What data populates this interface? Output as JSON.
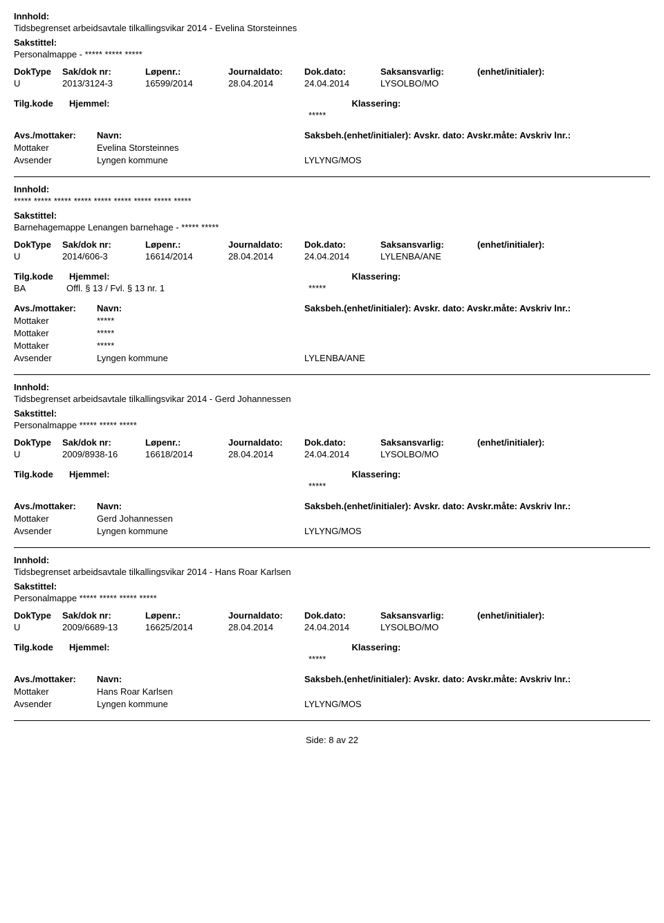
{
  "labels": {
    "innhold": "Innhold:",
    "sakstittel": "Sakstittel:",
    "doktype": "DokType",
    "sakdoknr": "Sak/dok nr:",
    "lopenr": "Løpenr.:",
    "journaldato": "Journaldato:",
    "dokdato": "Dok.dato:",
    "saksansvarlig": "Saksansvarlig:",
    "enhet": "(enhet/initialer):",
    "tilgkode": "Tilg.kode",
    "hjemmel": "Hjemmel:",
    "klassering": "Klassering:",
    "avs_mottaker": "Avs./mottaker:",
    "navn": "Navn:",
    "saksbeh_line": "Saksbeh.(enhet/initialer): Avskr. dato:  Avskr.måte:  Avskriv lnr.:",
    "mottaker": "Mottaker",
    "avsender": "Avsender",
    "side": "Side:",
    "av": "av"
  },
  "page": {
    "current": "8",
    "total": "22"
  },
  "records": [
    {
      "innhold": "Tidsbegrenset arbeidsavtale tilkallingsvikar 2014 - Evelina Storsteinnes",
      "sakstittel": "Personalmappe - ***** ***** *****",
      "doktype": "U",
      "sakdoknr": "2013/3124-3",
      "lopenr": "16599/2014",
      "journaldato": "28.04.2014",
      "dokdato": "24.04.2014",
      "saksansvarlig": "LYSOLBO/MO",
      "tilgkode": "",
      "hjemmel": "",
      "klassering": "*****",
      "parties": [
        {
          "role": "Mottaker",
          "name": "Evelina Storsteinnes",
          "code": ""
        },
        {
          "role": "Avsender",
          "name": "Lyngen kommune",
          "code": "LYLYNG/MOS"
        }
      ]
    },
    {
      "innhold": "***** ***** ***** ***** ***** ***** ***** ***** *****",
      "sakstittel": "Barnehagemappe Lenangen barnehage - ***** *****",
      "doktype": "U",
      "sakdoknr": "2014/606-3",
      "lopenr": "16614/2014",
      "journaldato": "28.04.2014",
      "dokdato": "24.04.2014",
      "saksansvarlig": "LYLENBA/ANE",
      "tilgkode": "BA",
      "hjemmel": "Offl. § 13 / Fvl. § 13 nr. 1",
      "klassering": "*****",
      "parties": [
        {
          "role": "Mottaker",
          "name": "*****",
          "code": ""
        },
        {
          "role": "Mottaker",
          "name": "*****",
          "code": ""
        },
        {
          "role": "Mottaker",
          "name": "*****",
          "code": ""
        },
        {
          "role": "Avsender",
          "name": "Lyngen kommune",
          "code": "LYLENBA/ANE"
        }
      ]
    },
    {
      "innhold": "Tidsbegrenset arbeidsavtale tilkallingsvikar 2014 - Gerd Johannessen",
      "sakstittel": "Personalmappe ***** ***** *****",
      "doktype": "U",
      "sakdoknr": "2009/8938-16",
      "lopenr": "16618/2014",
      "journaldato": "28.04.2014",
      "dokdato": "24.04.2014",
      "saksansvarlig": "LYSOLBO/MO",
      "tilgkode": "",
      "hjemmel": "",
      "klassering": "*****",
      "parties": [
        {
          "role": "Mottaker",
          "name": "Gerd Johannessen",
          "code": ""
        },
        {
          "role": "Avsender",
          "name": "Lyngen kommune",
          "code": "LYLYNG/MOS"
        }
      ]
    },
    {
      "innhold": "Tidsbegrenset arbeidsavtale tilkallingsvikar 2014 - Hans Roar Karlsen",
      "sakstittel": "Personalmappe ***** ***** ***** *****",
      "doktype": "U",
      "sakdoknr": "2009/6689-13",
      "lopenr": "16625/2014",
      "journaldato": "28.04.2014",
      "dokdato": "24.04.2014",
      "saksansvarlig": "LYSOLBO/MO",
      "tilgkode": "",
      "hjemmel": "",
      "klassering": "*****",
      "parties": [
        {
          "role": "Mottaker",
          "name": "Hans Roar Karlsen",
          "code": ""
        },
        {
          "role": "Avsender",
          "name": "Lyngen kommune",
          "code": "LYLYNG/MOS"
        }
      ]
    }
  ]
}
